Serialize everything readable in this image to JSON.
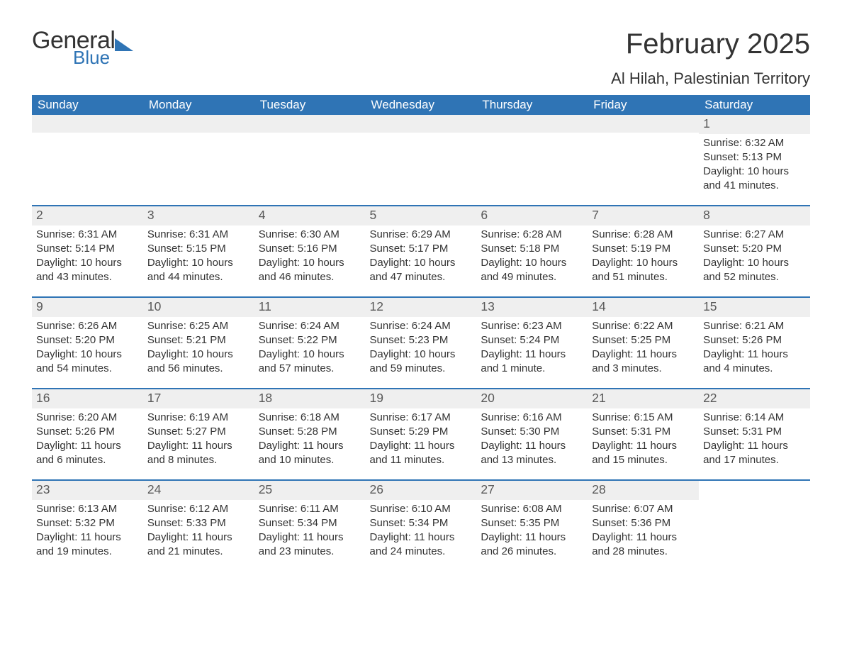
{
  "brand": {
    "word1": "General",
    "word2": "Blue",
    "accent_color": "#2f74b5"
  },
  "title": "February 2025",
  "subtitle": "Al Hilah, Palestinian Territory",
  "header_bg": "#2f74b5",
  "header_fg": "#ffffff",
  "daynum_bg": "#efefef",
  "page_bg": "#ffffff",
  "text_color": "#333333",
  "columns": [
    "Sunday",
    "Monday",
    "Tuesday",
    "Wednesday",
    "Thursday",
    "Friday",
    "Saturday"
  ],
  "weeks": [
    [
      null,
      null,
      null,
      null,
      null,
      null,
      {
        "d": "1",
        "sr": "6:32 AM",
        "ss": "5:13 PM",
        "dl": "10 hours and 41 minutes."
      }
    ],
    [
      {
        "d": "2",
        "sr": "6:31 AM",
        "ss": "5:14 PM",
        "dl": "10 hours and 43 minutes."
      },
      {
        "d": "3",
        "sr": "6:31 AM",
        "ss": "5:15 PM",
        "dl": "10 hours and 44 minutes."
      },
      {
        "d": "4",
        "sr": "6:30 AM",
        "ss": "5:16 PM",
        "dl": "10 hours and 46 minutes."
      },
      {
        "d": "5",
        "sr": "6:29 AM",
        "ss": "5:17 PM",
        "dl": "10 hours and 47 minutes."
      },
      {
        "d": "6",
        "sr": "6:28 AM",
        "ss": "5:18 PM",
        "dl": "10 hours and 49 minutes."
      },
      {
        "d": "7",
        "sr": "6:28 AM",
        "ss": "5:19 PM",
        "dl": "10 hours and 51 minutes."
      },
      {
        "d": "8",
        "sr": "6:27 AM",
        "ss": "5:20 PM",
        "dl": "10 hours and 52 minutes."
      }
    ],
    [
      {
        "d": "9",
        "sr": "6:26 AM",
        "ss": "5:20 PM",
        "dl": "10 hours and 54 minutes."
      },
      {
        "d": "10",
        "sr": "6:25 AM",
        "ss": "5:21 PM",
        "dl": "10 hours and 56 minutes."
      },
      {
        "d": "11",
        "sr": "6:24 AM",
        "ss": "5:22 PM",
        "dl": "10 hours and 57 minutes."
      },
      {
        "d": "12",
        "sr": "6:24 AM",
        "ss": "5:23 PM",
        "dl": "10 hours and 59 minutes."
      },
      {
        "d": "13",
        "sr": "6:23 AM",
        "ss": "5:24 PM",
        "dl": "11 hours and 1 minute."
      },
      {
        "d": "14",
        "sr": "6:22 AM",
        "ss": "5:25 PM",
        "dl": "11 hours and 3 minutes."
      },
      {
        "d": "15",
        "sr": "6:21 AM",
        "ss": "5:26 PM",
        "dl": "11 hours and 4 minutes."
      }
    ],
    [
      {
        "d": "16",
        "sr": "6:20 AM",
        "ss": "5:26 PM",
        "dl": "11 hours and 6 minutes."
      },
      {
        "d": "17",
        "sr": "6:19 AM",
        "ss": "5:27 PM",
        "dl": "11 hours and 8 minutes."
      },
      {
        "d": "18",
        "sr": "6:18 AM",
        "ss": "5:28 PM",
        "dl": "11 hours and 10 minutes."
      },
      {
        "d": "19",
        "sr": "6:17 AM",
        "ss": "5:29 PM",
        "dl": "11 hours and 11 minutes."
      },
      {
        "d": "20",
        "sr": "6:16 AM",
        "ss": "5:30 PM",
        "dl": "11 hours and 13 minutes."
      },
      {
        "d": "21",
        "sr": "6:15 AM",
        "ss": "5:31 PM",
        "dl": "11 hours and 15 minutes."
      },
      {
        "d": "22",
        "sr": "6:14 AM",
        "ss": "5:31 PM",
        "dl": "11 hours and 17 minutes."
      }
    ],
    [
      {
        "d": "23",
        "sr": "6:13 AM",
        "ss": "5:32 PM",
        "dl": "11 hours and 19 minutes."
      },
      {
        "d": "24",
        "sr": "6:12 AM",
        "ss": "5:33 PM",
        "dl": "11 hours and 21 minutes."
      },
      {
        "d": "25",
        "sr": "6:11 AM",
        "ss": "5:34 PM",
        "dl": "11 hours and 23 minutes."
      },
      {
        "d": "26",
        "sr": "6:10 AM",
        "ss": "5:34 PM",
        "dl": "11 hours and 24 minutes."
      },
      {
        "d": "27",
        "sr": "6:08 AM",
        "ss": "5:35 PM",
        "dl": "11 hours and 26 minutes."
      },
      {
        "d": "28",
        "sr": "6:07 AM",
        "ss": "5:36 PM",
        "dl": "11 hours and 28 minutes."
      },
      null
    ]
  ],
  "labels": {
    "sunrise": "Sunrise:",
    "sunset": "Sunset:",
    "daylight": "Daylight:"
  }
}
